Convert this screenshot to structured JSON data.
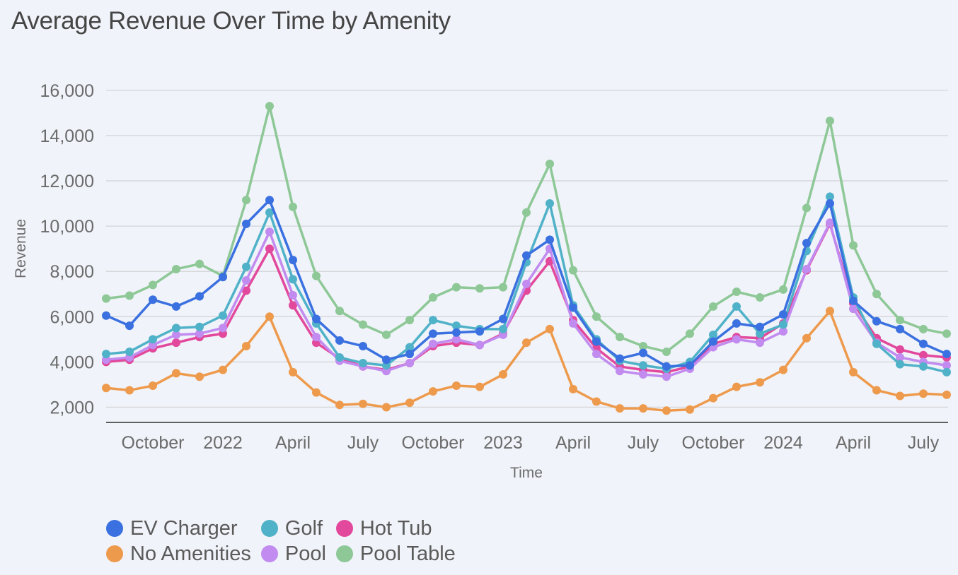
{
  "chart_data": {
    "type": "line",
    "title": "Average Revenue Over Time by Amenity",
    "xlabel": "Time",
    "ylabel": "Revenue",
    "ylim": [
      1350,
      16600
    ],
    "yticks": [
      2000,
      4000,
      6000,
      8000,
      10000,
      12000,
      14000,
      16000
    ],
    "ytick_labels": [
      "2,000",
      "4,000",
      "6,000",
      "8,000",
      "10,000",
      "12,000",
      "14,000",
      "16,000"
    ],
    "grid": true,
    "legend_position": "bottom-left",
    "x": [
      "2021-08",
      "2021-09",
      "2021-10",
      "2021-11",
      "2021-12",
      "2022-01",
      "2022-02",
      "2022-03",
      "2022-04",
      "2022-05",
      "2022-06",
      "2022-07",
      "2022-08",
      "2022-09",
      "2022-10",
      "2022-11",
      "2022-12",
      "2023-01",
      "2023-02",
      "2023-03",
      "2023-04",
      "2023-05",
      "2023-06",
      "2023-07",
      "2023-08",
      "2023-09",
      "2023-10",
      "2023-11",
      "2023-12",
      "2024-01",
      "2024-02",
      "2024-03",
      "2024-04",
      "2024-05",
      "2024-06",
      "2024-07",
      "2024-08"
    ],
    "xticks": [
      {
        "index": 2,
        "label": "October"
      },
      {
        "index": 5,
        "label": "2022"
      },
      {
        "index": 8,
        "label": "April"
      },
      {
        "index": 11,
        "label": "July"
      },
      {
        "index": 14,
        "label": "October"
      },
      {
        "index": 17,
        "label": "2023"
      },
      {
        "index": 20,
        "label": "April"
      },
      {
        "index": 23,
        "label": "July"
      },
      {
        "index": 26,
        "label": "October"
      },
      {
        "index": 29,
        "label": "2024"
      },
      {
        "index": 32,
        "label": "April"
      },
      {
        "index": 35,
        "label": "July"
      }
    ],
    "series": [
      {
        "name": "Pool Table",
        "color": "#8ec897",
        "values": [
          6800,
          6930,
          7400,
          8100,
          8330,
          7800,
          11150,
          15300,
          10850,
          7800,
          6250,
          5650,
          5200,
          5850,
          6850,
          7300,
          7250,
          7300,
          10600,
          12750,
          8050,
          6000,
          5100,
          4700,
          4450,
          5250,
          6450,
          7100,
          6850,
          7200,
          10800,
          14650,
          9150,
          7000,
          5850,
          5450,
          5250
        ]
      },
      {
        "name": "No Amenities",
        "color": "#ee9a4d",
        "values": [
          2850,
          2750,
          2950,
          3500,
          3350,
          3650,
          4700,
          6000,
          3550,
          2650,
          2100,
          2150,
          2000,
          2200,
          2700,
          2950,
          2900,
          3450,
          4850,
          5450,
          2800,
          2250,
          1950,
          1950,
          1850,
          1900,
          2400,
          2900,
          3100,
          3650,
          5050,
          6250,
          3550,
          2750,
          2500,
          2600,
          2550
        ]
      },
      {
        "name": "Hot Tub",
        "color": "#e2489c",
        "values": [
          4000,
          4100,
          4600,
          4850,
          5100,
          5250,
          7150,
          9000,
          6500,
          4850,
          4150,
          3800,
          3650,
          3950,
          4700,
          4850,
          4750,
          5250,
          7150,
          8450,
          5850,
          4600,
          3800,
          3650,
          3550,
          3800,
          4800,
          5100,
          5050,
          5700,
          8050,
          10100,
          6600,
          5050,
          4550,
          4300,
          4200
        ]
      },
      {
        "name": "Pool",
        "color": "#c18bf0",
        "values": [
          4100,
          4200,
          4750,
          5200,
          5250,
          5500,
          7600,
          9750,
          6950,
          5100,
          4050,
          3800,
          3600,
          3950,
          4800,
          5000,
          4750,
          5200,
          7450,
          9000,
          5700,
          4350,
          3600,
          3450,
          3350,
          3700,
          4650,
          5000,
          4850,
          5350,
          8100,
          10150,
          6350,
          4850,
          4200,
          4000,
          3850
        ]
      },
      {
        "name": "Golf",
        "color": "#50b2c8",
        "values": [
          4350,
          4450,
          5000,
          5500,
          5550,
          6050,
          8200,
          10600,
          7650,
          5700,
          4200,
          3950,
          3850,
          4650,
          5850,
          5600,
          5450,
          5450,
          8400,
          11000,
          6500,
          5000,
          4050,
          3850,
          3700,
          4000,
          5200,
          6450,
          5250,
          5650,
          8900,
          11300,
          6850,
          4800,
          3900,
          3800,
          3550
        ]
      },
      {
        "name": "EV Charger",
        "color": "#3a70e0",
        "values": [
          6050,
          5600,
          6750,
          6450,
          6900,
          7750,
          10100,
          11150,
          8500,
          5900,
          4950,
          4700,
          4100,
          4350,
          5250,
          5300,
          5350,
          5900,
          8700,
          9400,
          6400,
          4900,
          4150,
          4400,
          3800,
          3850,
          4900,
          5700,
          5550,
          6100,
          9250,
          11000,
          6700,
          5800,
          5450,
          4800,
          4350
        ]
      }
    ]
  },
  "legend": {
    "items": [
      {
        "name": "EV Charger",
        "color": "#3a70e0"
      },
      {
        "name": "Golf",
        "color": "#50b2c8"
      },
      {
        "name": "Hot Tub",
        "color": "#e2489c"
      },
      {
        "name": "No Amenities",
        "color": "#ee9a4d"
      },
      {
        "name": "Pool",
        "color": "#c18bf0"
      },
      {
        "name": "Pool Table",
        "color": "#8ec897"
      }
    ]
  }
}
